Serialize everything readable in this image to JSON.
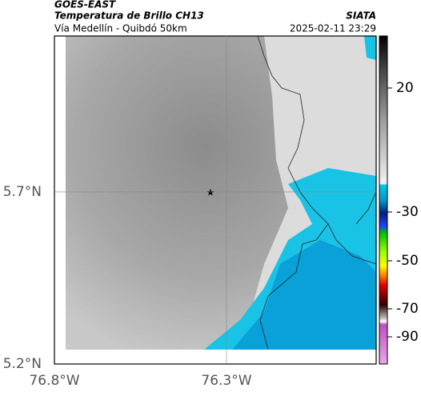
{
  "header": {
    "source": "GOES-EAST",
    "title": "Temperatura de Brillo CH13",
    "subtitle": "Vía Medellín - Quibdó 50km",
    "brand": "SIATA",
    "datetime": "2025-02-11 23:29"
  },
  "map": {
    "xlim": [
      -76.8,
      -75.865
    ],
    "ylim": [
      5.2,
      6.153
    ],
    "xticks": [
      {
        "value": -76.8,
        "label": "76.8°W"
      },
      {
        "value": -76.3,
        "label": "76.3°W"
      }
    ],
    "yticks": [
      {
        "value": 5.2,
        "label": "5.2°N"
      },
      {
        "value": 5.7,
        "label": "5.7°N"
      }
    ]
  },
  "colorbar": {
    "ticks": [
      20,
      -30,
      -50,
      -70,
      -90
    ]
  }
}
